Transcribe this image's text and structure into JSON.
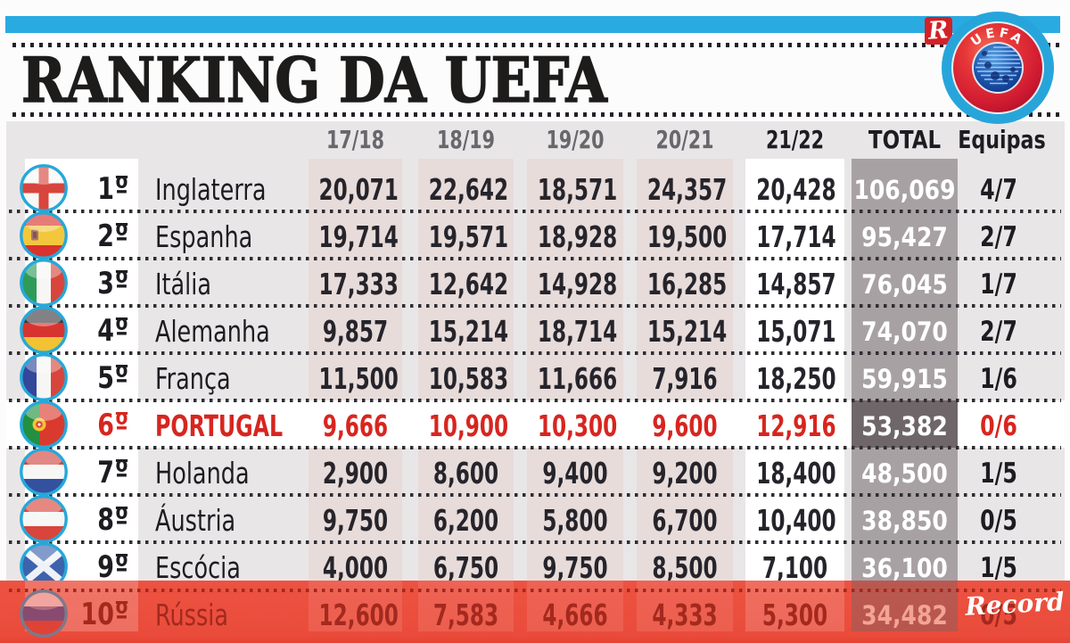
{
  "masthead": {
    "title": "RANKING DA UEFA",
    "record_logo_mark": "R",
    "record_logo_script": "Record",
    "uefa_logo_text": "UEFA"
  },
  "colors": {
    "accent_cyan": "#29abe2",
    "record_red": "#d42127",
    "band_red": "#ec2c1a",
    "highlight_red": "#d8251f",
    "table_bg": "#e9e6e8",
    "season_strip": "#e7dcda",
    "total_strip": "#a8a1a4",
    "portugal_total_cell": "#6f6669"
  },
  "chart_data": {
    "type": "table",
    "title": "RANKING DA UEFA",
    "season_columns": [
      "17/18",
      "18/19",
      "19/20",
      "20/21",
      "21/22"
    ],
    "total_label": "TOTAL",
    "teams_label": "Equipas",
    "rows": [
      {
        "rank": "1",
        "ordinal": "º",
        "country": "Inglaterra",
        "flag": "england",
        "seasons": [
          "20,071",
          "22,642",
          "18,571",
          "24,357",
          "20,428"
        ],
        "total": "106,069",
        "equipas": "4/7",
        "highlight": "none"
      },
      {
        "rank": "2",
        "ordinal": "º",
        "country": "Espanha",
        "flag": "spain",
        "seasons": [
          "19,714",
          "19,571",
          "18,928",
          "19,500",
          "17,714"
        ],
        "total": "95,427",
        "equipas": "2/7",
        "highlight": "none"
      },
      {
        "rank": "3",
        "ordinal": "º",
        "country": "Itália",
        "flag": "italy",
        "seasons": [
          "17,333",
          "12,642",
          "14,928",
          "16,285",
          "14,857"
        ],
        "total": "76,045",
        "equipas": "1/7",
        "highlight": "none"
      },
      {
        "rank": "4",
        "ordinal": "º",
        "country": "Alemanha",
        "flag": "germany",
        "seasons": [
          "9,857",
          "15,214",
          "18,714",
          "15,214",
          "15,071"
        ],
        "total": "74,070",
        "equipas": "2/7",
        "highlight": "none"
      },
      {
        "rank": "5",
        "ordinal": "º",
        "country": "França",
        "flag": "france",
        "seasons": [
          "11,500",
          "10,583",
          "11,666",
          "7,916",
          "18,250"
        ],
        "total": "59,915",
        "equipas": "1/6",
        "highlight": "none"
      },
      {
        "rank": "6",
        "ordinal": "º",
        "country": "PORTUGAL",
        "flag": "portugal",
        "seasons": [
          "9,666",
          "10,900",
          "10,300",
          "9,600",
          "12,916"
        ],
        "total": "53,382",
        "equipas": "0/6",
        "highlight": "portugal"
      },
      {
        "rank": "7",
        "ordinal": "º",
        "country": "Holanda",
        "flag": "netherlands",
        "seasons": [
          "2,900",
          "8,600",
          "9,400",
          "9,200",
          "18,400"
        ],
        "total": "48,500",
        "equipas": "1/5",
        "highlight": "none"
      },
      {
        "rank": "8",
        "ordinal": "º",
        "country": "Áustria",
        "flag": "austria",
        "seasons": [
          "9,750",
          "6,200",
          "5,800",
          "6,700",
          "10,400"
        ],
        "total": "38,850",
        "equipas": "0/5",
        "highlight": "none"
      },
      {
        "rank": "9",
        "ordinal": "º",
        "country": "Escócia",
        "flag": "scotland",
        "seasons": [
          "4,000",
          "6,750",
          "9,750",
          "8,500",
          "7,100"
        ],
        "total": "36,100",
        "equipas": "1/5",
        "highlight": "none"
      },
      {
        "rank": "10",
        "ordinal": "º",
        "country": "Rússia",
        "flag": "russia",
        "seasons": [
          "12,600",
          "7,583",
          "4,666",
          "4,333",
          "5,300"
        ],
        "total": "34,482",
        "equipas": "0/5",
        "highlight": "band"
      }
    ]
  }
}
